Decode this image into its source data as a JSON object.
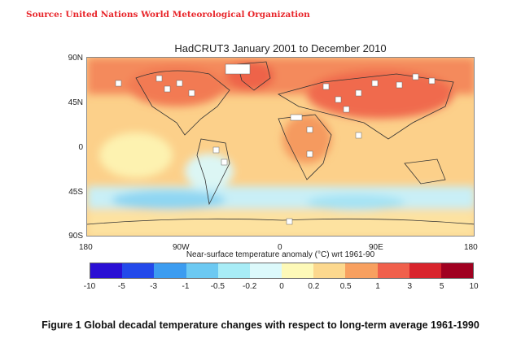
{
  "source": "Source: United Nations World Meteorological Organization",
  "map": {
    "title": "HadCRUT3 January 2001 to December 2010",
    "lat_labels": [
      "90N",
      "45N",
      "0",
      "45S",
      "90S"
    ],
    "lon_labels": [
      "180",
      "90W",
      "0",
      "90E",
      "180"
    ],
    "projection": "equirectangular",
    "missing_data_color": "#ffffff"
  },
  "colorbar": {
    "title": "Near-surface temperature anomaly (°C) wrt 1961-90",
    "ticks": [
      "-10",
      "-5",
      "-3",
      "-1",
      "-0.5",
      "-0.2",
      "0",
      "0.2",
      "0.5",
      "1",
      "3",
      "5",
      "10"
    ],
    "colors": [
      "#2a0fd4",
      "#2349ea",
      "#3c9cf0",
      "#6cc9f2",
      "#a8ecf6",
      "#dcf9fb",
      "#fdf9b8",
      "#fcd88e",
      "#f8a060",
      "#f0604c",
      "#d8242c",
      "#a00020"
    ]
  },
  "caption": "Figure 1 Global decadal temperature changes with respect to long-term average 1961-1990"
}
